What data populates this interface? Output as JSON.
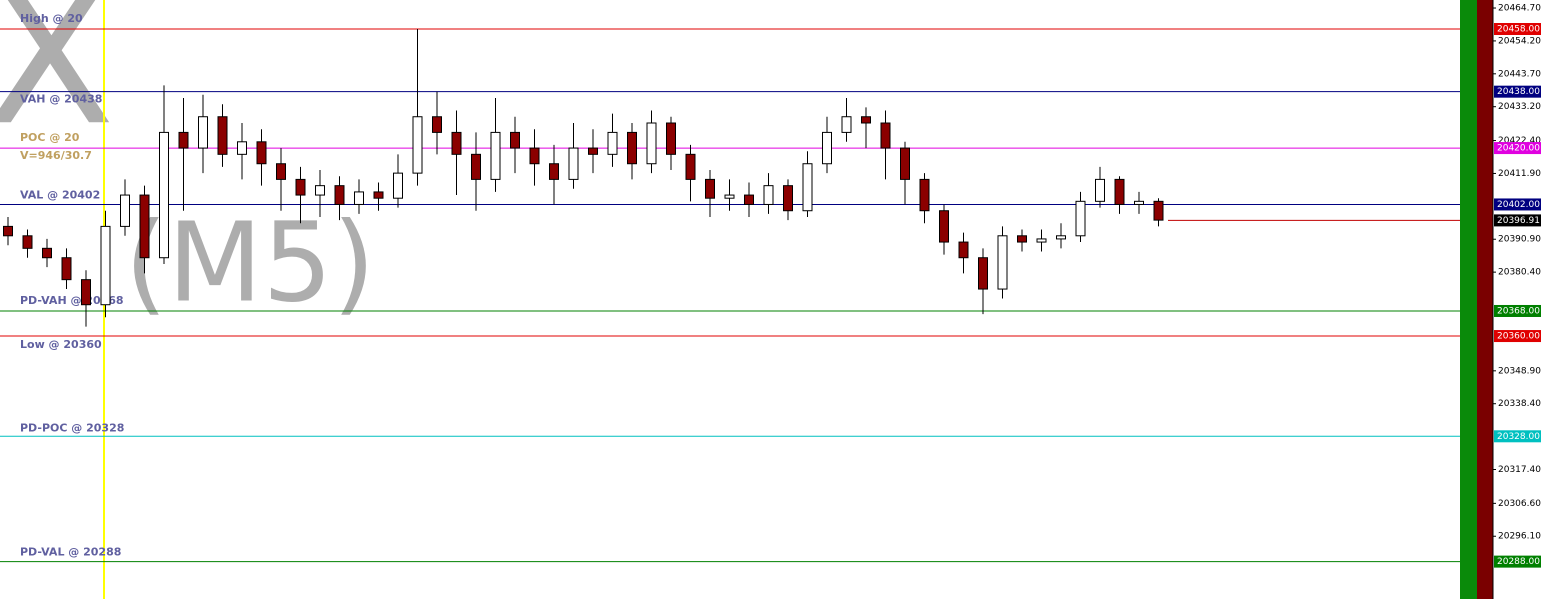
{
  "watermark": {
    "symbol": "X",
    "period": "(M5)"
  },
  "price_axis": {
    "range": [
      20276.07,
      20467.26
    ],
    "ticks": [
      {
        "value": 20464.7,
        "label": "20464.70"
      },
      {
        "value": 20454.2,
        "label": "20454.20"
      },
      {
        "value": 20443.7,
        "label": "20443.70"
      },
      {
        "value": 20433.2,
        "label": "20433.20"
      },
      {
        "value": 20422.4,
        "label": "20422.40"
      },
      {
        "value": 20411.9,
        "label": "20411.90"
      },
      {
        "value": 20390.9,
        "label": "20390.90"
      },
      {
        "value": 20380.4,
        "label": "20380.40"
      },
      {
        "value": 20348.9,
        "label": "20348.90"
      },
      {
        "value": 20338.4,
        "label": "20338.40"
      },
      {
        "value": 20317.4,
        "label": "20317.40"
      },
      {
        "value": 20306.6,
        "label": "20306.60"
      },
      {
        "value": 20296.1,
        "label": "20296.10"
      }
    ]
  },
  "levels": [
    {
      "price": {
        "value": 20458,
        "label": "20458.00"
      },
      "color": "#e00000",
      "text": "High @ 20"
    },
    {
      "price": {
        "value": 20438,
        "label": "20438.00"
      },
      "color": "#000080",
      "text": "VAH @ 20438"
    },
    {
      "price": {
        "value": 20420,
        "label": "20420.00"
      },
      "color": "#e000e0",
      "text": "POC @ 20"
    },
    {
      "price": {
        "value": 20402,
        "label": "20402.00"
      },
      "color": "#000080",
      "text": "VAL @ 20402"
    },
    {
      "price": {
        "value": 20368,
        "label": "20368.00"
      },
      "color": "#008000",
      "text": "PD-VAH @ 20368"
    },
    {
      "price": {
        "value": 20360,
        "label": "20360.00"
      },
      "color": "#e00000",
      "text": "Low @ 20360"
    },
    {
      "price": {
        "value": 20328,
        "label": "20328.00"
      },
      "color": "#00c0c0",
      "text": "PD-POC @ 20328"
    },
    {
      "price": {
        "value": 20288,
        "label": "20288.00"
      },
      "color": "#008000",
      "text": "PD-VAL @ 20288"
    }
  ],
  "volume_note": "V=946/30.7",
  "current_price": {
    "value": 20396.91,
    "label": "20396.91"
  },
  "candles": {
    "open": [
      20395,
      20392,
      20388,
      20385,
      20378,
      20370,
      20395,
      20405,
      20385,
      20425,
      20420,
      20430,
      20418,
      20422,
      20415,
      20410,
      20405,
      20408,
      20402,
      20406,
      20404,
      20412,
      20430,
      20425,
      20418,
      20410,
      20425,
      20420,
      20415,
      20410,
      20420,
      20418,
      20425,
      20415,
      20428,
      20418,
      20410,
      20404,
      20405,
      20402,
      20408,
      20400,
      20415,
      20425,
      20430,
      20428,
      20420,
      20410,
      20400,
      20390,
      20385,
      20375,
      20392,
      20390,
      20391,
      20392,
      20403,
      20410,
      20402,
      20403
    ],
    "high": [
      20398,
      20394,
      20391,
      20388,
      20381,
      20400,
      20410,
      20408,
      20440,
      20436,
      20437,
      20434,
      20428,
      20426,
      20420,
      20414,
      20413,
      20411,
      20410,
      20409,
      20418,
      20458,
      20438,
      20432,
      20425,
      20436,
      20430,
      20426,
      20421,
      20428,
      20426,
      20431,
      20428,
      20432,
      20430,
      20421,
      20413,
      20410,
      20409,
      20412,
      20410,
      20419,
      20430,
      20436,
      20433,
      20432,
      20422,
      20412,
      20402,
      20393,
      20388,
      20395,
      20394,
      20394,
      20396,
      20406,
      20414,
      20411,
      20406,
      20404
    ],
    "low": [
      20389,
      20385,
      20382,
      20375,
      20363,
      20366,
      20392,
      20380,
      20383,
      20400,
      20412,
      20414,
      20410,
      20408,
      20400,
      20396,
      20398,
      20397,
      20399,
      20400,
      20401,
      20408,
      20418,
      20405,
      20400,
      20406,
      20412,
      20408,
      20402,
      20407,
      20412,
      20414,
      20410,
      20412,
      20413,
      20403,
      20398,
      20400,
      20398,
      20399,
      20397,
      20398,
      20412,
      20422,
      20420,
      20410,
      20402,
      20396,
      20386,
      20380,
      20367,
      20372,
      20387,
      20387,
      20388,
      20390,
      20401,
      20399,
      20399,
      20395
    ],
    "close": [
      20392,
      20388,
      20385,
      20378,
      20370,
      20395,
      20405,
      20385,
      20425,
      20420,
      20430,
      20418,
      20422,
      20415,
      20410,
      20405,
      20408,
      20402,
      20406,
      20404,
      20412,
      20430,
      20425,
      20418,
      20410,
      20425,
      20420,
      20415,
      20410,
      20420,
      20418,
      20425,
      20415,
      20428,
      20418,
      20410,
      20404,
      20405,
      20402,
      20408,
      20400,
      20415,
      20425,
      20430,
      20428,
      20420,
      20410,
      20400,
      20390,
      20385,
      20375,
      20392,
      20390,
      20391,
      20392,
      20403,
      20410,
      20402,
      20403,
      20397
    ]
  }
}
